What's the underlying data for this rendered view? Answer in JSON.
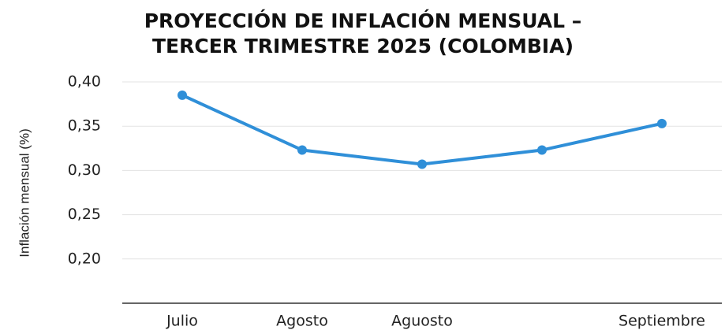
{
  "chart_data": {
    "type": "line",
    "title": [
      "PROYECCIÓN DE INFLACIÓN MENSUAL –",
      "TERCER TRIMESTRE 2025 (COLOMBIA)"
    ],
    "y_label": "Inflación mensual (%)",
    "categories": [
      "Julio",
      "Agosto",
      "Aguosto",
      null,
      "Septiembre"
    ],
    "values": [
      0.385,
      0.323,
      0.307,
      0.323,
      0.353
    ],
    "color": "#2f8fd8",
    "ylim": [
      0.15,
      0.4
    ],
    "yticks": [
      {
        "value": 0.2,
        "label": "0,20"
      },
      {
        "value": 0.25,
        "label": "0,25"
      },
      {
        "value": 0.3,
        "label": "0,30"
      },
      {
        "value": 0.35,
        "label": "0,35"
      },
      {
        "value": 0.4,
        "label": "0,40"
      }
    ],
    "grid": true
  }
}
